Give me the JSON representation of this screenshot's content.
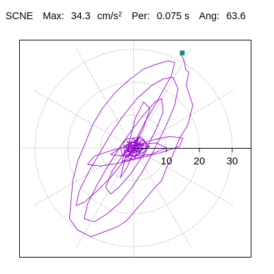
{
  "header": {
    "station": "SCNE",
    "max_label": "Max:",
    "max_value": "34.3",
    "max_units": "cm/s",
    "max_units_exp": "2",
    "per_label": "Per:",
    "per_value": "0.075 s",
    "ang_label": "Ang:",
    "ang_value": "63.6"
  },
  "chart_data": {
    "type": "polar-line",
    "ticks": [
      {
        "value": 10,
        "label": "10"
      },
      {
        "value": 20,
        "label": "20"
      },
      {
        "value": 30,
        "label": "30"
      }
    ],
    "rmax": 34.3,
    "grid": true,
    "spokes_deg": [
      0,
      30,
      60,
      90,
      120,
      150,
      180,
      210,
      240,
      270,
      300,
      330
    ],
    "series": [
      {
        "color": "#9400d3",
        "points": [
          [
            14.5,
            28.6
          ],
          [
            15.5,
            26.0
          ],
          [
            15.8,
            24.0
          ],
          [
            16.8,
            23.0
          ],
          [
            16.0,
            19.0
          ],
          [
            18.0,
            13.0
          ],
          [
            16.5,
            7.0
          ],
          [
            14.0,
            3.0
          ],
          [
            12.0,
            -2.0
          ],
          [
            10.0,
            -6.0
          ],
          [
            8.5,
            -10.0
          ],
          [
            6.5,
            -12.0
          ],
          [
            4.0,
            -15.0
          ],
          [
            0.5,
            -19.0
          ],
          [
            -2.0,
            -22.0
          ],
          [
            -5.0,
            -24.0
          ],
          [
            -9.0,
            -25.5
          ],
          [
            -13.0,
            -27.0
          ],
          [
            -17.0,
            -25.0
          ],
          [
            -19.5,
            -21.5
          ],
          [
            -19.0,
            -16.0
          ],
          [
            -18.5,
            -10.0
          ],
          [
            -17.0,
            -4.0
          ],
          [
            -14.5,
            2.0
          ],
          [
            -12.5,
            7.0
          ],
          [
            -9.5,
            12.0
          ],
          [
            -5.5,
            17.0
          ],
          [
            -1.0,
            21.0
          ],
          [
            3.0,
            24.0
          ],
          [
            7.0,
            25.5
          ],
          [
            10.5,
            26.5
          ],
          [
            12.5,
            26.0
          ],
          [
            11.5,
            22.0
          ],
          [
            9.0,
            17.5
          ],
          [
            6.5,
            13.0
          ],
          [
            3.5,
            8.0
          ],
          [
            1.5,
            4.0
          ],
          [
            0.0,
            0.5
          ]
        ]
      },
      {
        "color": "#9400d3",
        "points": [
          [
            0.0,
            0.5
          ],
          [
            -3.0,
            -4.0
          ],
          [
            -7.0,
            -9.0
          ],
          [
            -11.0,
            -13.0
          ],
          [
            -15.0,
            -16.5
          ],
          [
            -17.5,
            -17.5
          ],
          [
            -16.5,
            -13.0
          ],
          [
            -13.5,
            -7.0
          ],
          [
            -10.0,
            -1.0
          ],
          [
            -6.5,
            5.0
          ],
          [
            -3.0,
            10.0
          ],
          [
            1.0,
            15.0
          ],
          [
            5.5,
            19.0
          ],
          [
            9.0,
            21.0
          ],
          [
            12.0,
            21.5
          ],
          [
            13.5,
            18.0
          ],
          [
            12.5,
            13.0
          ],
          [
            10.0,
            7.0
          ],
          [
            7.5,
            2.0
          ],
          [
            5.0,
            -3.0
          ],
          [
            2.5,
            -7.5
          ],
          [
            -0.5,
            -12.0
          ],
          [
            -4.0,
            -16.5
          ],
          [
            -8.0,
            -20.0
          ],
          [
            -12.0,
            -22.5
          ],
          [
            -15.0,
            -21.5
          ],
          [
            -14.0,
            -17.0
          ],
          [
            -11.0,
            -11.0
          ],
          [
            -7.5,
            -5.0
          ],
          [
            -4.0,
            0.5
          ],
          [
            -0.5,
            5.5
          ],
          [
            3.0,
            10.0
          ],
          [
            6.5,
            14.0
          ],
          [
            8.5,
            15.0
          ],
          [
            9.0,
            11.0
          ],
          [
            7.0,
            6.0
          ],
          [
            4.5,
            1.0
          ],
          [
            2.0,
            -3.5
          ],
          [
            -1.0,
            -8.0
          ],
          [
            -4.5,
            -12.0
          ],
          [
            -7.0,
            -14.0
          ],
          [
            -8.5,
            -12.0
          ],
          [
            -6.5,
            -7.0
          ],
          [
            -3.5,
            -2.5
          ],
          [
            -0.5,
            1.5
          ],
          [
            2.0,
            3.5
          ],
          [
            3.5,
            2.0
          ],
          [
            2.0,
            -1.0
          ],
          [
            -1.0,
            -3.5
          ],
          [
            -3.5,
            -4.0
          ],
          [
            -2.5,
            -1.0
          ],
          [
            0.0,
            0.5
          ]
        ]
      },
      {
        "color": "#9400d3",
        "points": [
          [
            0.0,
            0.5
          ],
          [
            6.0,
            2.5
          ],
          [
            11.0,
            3.5
          ],
          [
            15.0,
            3.0
          ],
          [
            14.0,
            0.5
          ],
          [
            8.0,
            -1.5
          ],
          [
            2.0,
            -3.0
          ],
          [
            -4.0,
            -4.5
          ],
          [
            -10.0,
            -5.5
          ],
          [
            -14.0,
            -5.0
          ],
          [
            -12.0,
            -2.5
          ],
          [
            -6.0,
            -0.5
          ],
          [
            1.0,
            1.0
          ],
          [
            7.0,
            1.5
          ],
          [
            10.0,
            0.0
          ],
          [
            5.0,
            -2.0
          ],
          [
            -2.0,
            -2.5
          ],
          [
            -7.0,
            -2.0
          ],
          [
            -4.0,
            0.0
          ],
          [
            1.0,
            0.8
          ],
          [
            5.0,
            0.5
          ],
          [
            2.0,
            -0.8
          ],
          [
            -2.0,
            -1.0
          ],
          [
            0.0,
            0.5
          ]
        ]
      },
      {
        "color": "#9400d3",
        "points": [
          [
            0.0,
            0.5
          ],
          [
            3.0,
            6.0
          ],
          [
            5.0,
            12.0
          ],
          [
            3.0,
            14.0
          ],
          [
            0.5,
            9.0
          ],
          [
            -1.0,
            3.0
          ],
          [
            -2.5,
            -3.0
          ],
          [
            -4.0,
            -9.0
          ],
          [
            -2.0,
            -6.0
          ],
          [
            0.0,
            -1.0
          ],
          [
            1.5,
            3.0
          ],
          [
            0.0,
            0.5
          ]
        ]
      },
      {
        "color": "#9400d3",
        "points": [
          [
            0.0,
            0.5
          ],
          [
            3.0,
            2.5
          ],
          [
            4.5,
            0.5
          ],
          [
            3.0,
            -2.5
          ],
          [
            -0.5,
            -3.5
          ],
          [
            -3.5,
            -2.0
          ],
          [
            -4.0,
            0.5
          ],
          [
            -2.0,
            2.8
          ],
          [
            1.5,
            3.2
          ],
          [
            4.0,
            1.5
          ],
          [
            3.5,
            -1.0
          ],
          [
            0.5,
            -2.5
          ],
          [
            -2.5,
            -2.0
          ],
          [
            -3.0,
            0.0
          ],
          [
            -1.0,
            1.8
          ],
          [
            2.0,
            1.5
          ],
          [
            2.5,
            -0.5
          ],
          [
            0.0,
            -1.5
          ],
          [
            -1.8,
            -0.5
          ],
          [
            -0.5,
            1.0
          ],
          [
            1.2,
            0.5
          ],
          [
            0.5,
            -0.6
          ],
          [
            -0.6,
            0.0
          ],
          [
            0.0,
            0.5
          ]
        ]
      },
      {
        "color": "#9400d3",
        "points": [
          [
            -1.0,
            -1.0
          ],
          [
            2.5,
            1.0
          ],
          [
            -2.0,
            2.0
          ],
          [
            1.0,
            -2.5
          ],
          [
            3.0,
            0.0
          ],
          [
            -3.0,
            -1.5
          ],
          [
            0.0,
            3.0
          ],
          [
            2.0,
            -1.5
          ],
          [
            -2.5,
            0.5
          ],
          [
            1.5,
            2.5
          ],
          [
            -1.0,
            -2.0
          ],
          [
            3.2,
            1.2
          ],
          [
            -3.2,
            0.8
          ],
          [
            0.5,
            -3.0
          ],
          [
            2.2,
            2.2
          ],
          [
            -1.8,
            -2.8
          ],
          [
            0.0,
            0.5
          ]
        ]
      }
    ],
    "marker": {
      "x": 14.8,
      "y": 28.9,
      "color": "#109070"
    }
  }
}
